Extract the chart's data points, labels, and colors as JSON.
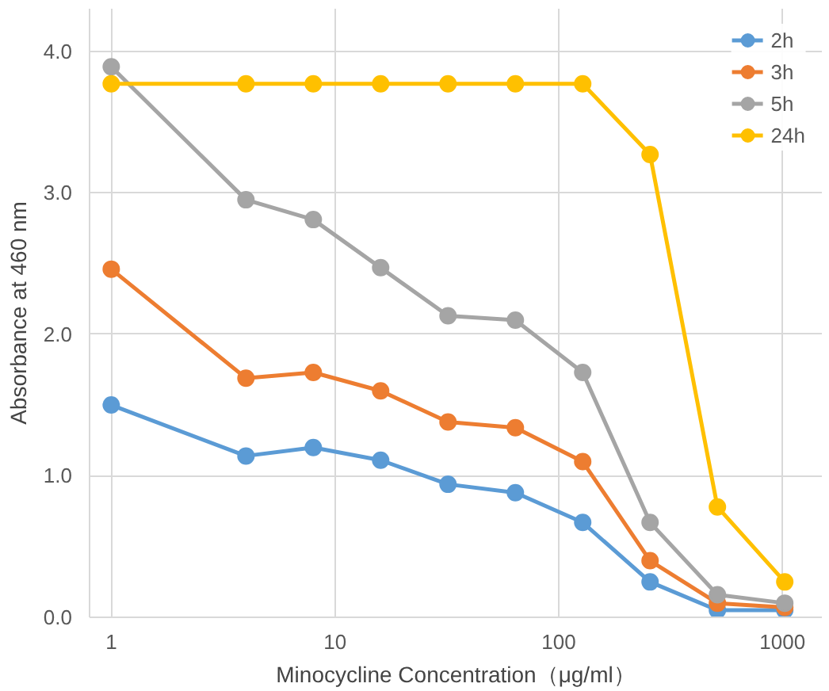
{
  "chart_data": {
    "type": "line",
    "xlabel": "Minocycline Concentration（μg/ml）",
    "ylabel": "Absorbance at 460 nm",
    "x": [
      1,
      4,
      8,
      16,
      32,
      64,
      128,
      256,
      512,
      1024
    ],
    "series": [
      {
        "name": "2h",
        "color": "#5b9bd5",
        "values": [
          1.5,
          1.14,
          1.2,
          1.11,
          0.94,
          0.88,
          0.67,
          0.25,
          0.05,
          0.05
        ]
      },
      {
        "name": "3h",
        "color": "#ed7d31",
        "values": [
          2.46,
          1.69,
          1.73,
          1.6,
          1.38,
          1.34,
          1.1,
          0.4,
          0.1,
          0.07
        ]
      },
      {
        "name": "5h",
        "color": "#a5a5a5",
        "values": [
          3.89,
          2.95,
          2.81,
          2.47,
          2.13,
          2.1,
          1.73,
          0.67,
          0.16,
          0.1
        ]
      },
      {
        "name": "24h",
        "color": "#ffc000",
        "values": [
          3.77,
          3.77,
          3.77,
          3.77,
          3.77,
          3.77,
          3.77,
          3.27,
          0.78,
          0.25
        ]
      }
    ],
    "log": "x",
    "xlim": [
      0.8,
      1500
    ],
    "xticks": [
      1,
      10,
      100,
      1000
    ],
    "ylim": [
      0,
      4.3
    ],
    "yticks": [
      {
        "value": 0,
        "label": "0.0"
      },
      {
        "value": 1,
        "label": "1.0"
      },
      {
        "value": 2,
        "label": "2.0"
      },
      {
        "value": 3,
        "label": "3.0"
      },
      {
        "value": 4,
        "label": "4.0"
      }
    ],
    "grid": true,
    "legend": "top right",
    "marker": "circle",
    "line_style": "solid"
  }
}
